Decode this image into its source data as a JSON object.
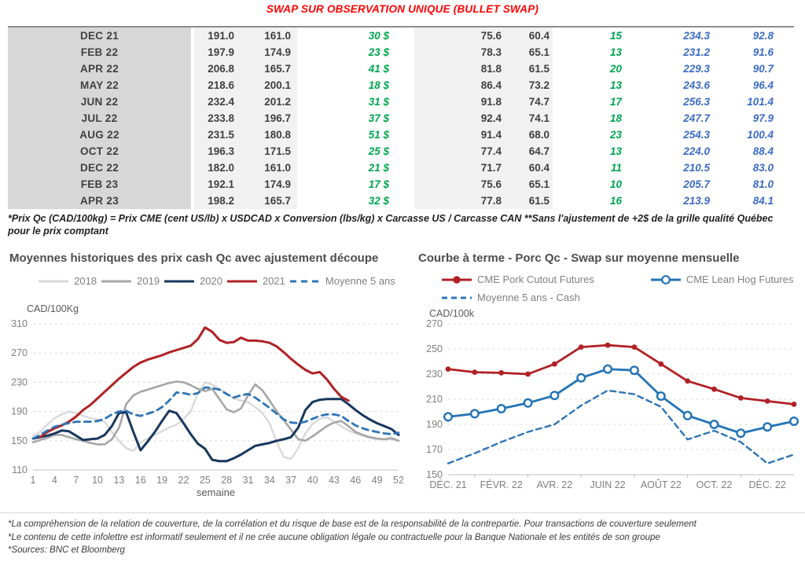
{
  "page": {
    "title": "SWAP SUR OBSERVATION UNIQUE (BULLET SWAP)",
    "title_color": "#ff0000",
    "table_footnote": "*Prix Qc (CAD/100kg) = Prix CME (cent US/lb) x USDCAD x Conversion (lbs/kg) x Carcasse US / Carcasse CAN **Sans l'ajustement de +2$ de la grille qualité Québec pour le prix comptant",
    "footer_notes": [
      "*La compréhension de la relation de couverture, de la corrélation et du risque de base est de la responsabilité de la contrepartie. Pour transactions de couverture seulement",
      "*Le contenu de cette infolettre est informatif seulement et il ne crée aucune obligation légale ou contractuelle pour la Banque Nationale et les entités de son groupe",
      "*Sources: BNC et Bloomberg"
    ]
  },
  "colors": {
    "table_text": "#404040",
    "green": "#00a550",
    "blue": "#3c6bc6",
    "band_dark": "#d7d7d7",
    "band_light": "#f1f1f1"
  },
  "table": {
    "rows": [
      {
        "label": "DEC 21",
        "values": [
          "191.0",
          "161.0",
          "30 $",
          "75.6",
          "60.4",
          "15",
          "234.3",
          "92.8"
        ]
      },
      {
        "label": "FEB 22",
        "values": [
          "197.9",
          "174.9",
          "23 $",
          "78.3",
          "65.1",
          "13",
          "231.2",
          "91.6"
        ]
      },
      {
        "label": "APR 22",
        "values": [
          "206.8",
          "165.7",
          "41 $",
          "81.8",
          "61.5",
          "20",
          "229.3",
          "90.7"
        ]
      },
      {
        "label": "MAY 22",
        "values": [
          "218.6",
          "200.1",
          "18 $",
          "86.4",
          "73.2",
          "13",
          "243.6",
          "96.4"
        ]
      },
      {
        "label": "JUN 22",
        "values": [
          "232.4",
          "201.2",
          "31 $",
          "91.8",
          "74.7",
          "17",
          "256.3",
          "101.4"
        ]
      },
      {
        "label": "JUL 22",
        "values": [
          "233.8",
          "196.7",
          "37 $",
          "92.4",
          "74.1",
          "18",
          "247.7",
          "97.9"
        ]
      },
      {
        "label": "AUG 22",
        "values": [
          "231.5",
          "180.8",
          "51 $",
          "91.4",
          "68.0",
          "23",
          "254.3",
          "100.4"
        ]
      },
      {
        "label": "OCT 22",
        "values": [
          "196.3",
          "171.5",
          "25 $",
          "77.4",
          "64.7",
          "13",
          "224.0",
          "88.4"
        ]
      },
      {
        "label": "DEC 22",
        "values": [
          "182.0",
          "161.0",
          "21 $",
          "71.7",
          "60.4",
          "11",
          "210.5",
          "83.0"
        ]
      },
      {
        "label": "FEB 23",
        "values": [
          "192.1",
          "174.9",
          "17 $",
          "75.6",
          "65.1",
          "10",
          "205.7",
          "81.0"
        ]
      },
      {
        "label": "APR 23",
        "values": [
          "198.2",
          "165.7",
          "32 $",
          "77.8",
          "61.5",
          "16",
          "213.9",
          "84.1"
        ]
      }
    ]
  },
  "chart_data": [
    {
      "type": "line",
      "title": "Moyennes historiques des prix cash Qc avec ajustement découpe",
      "ylabel": "CAD/100Kg",
      "xlabel": "semaine",
      "ylim": [
        110,
        310
      ],
      "yticks": [
        110,
        150,
        190,
        230,
        270,
        310
      ],
      "xticks": [
        {
          "pos": 1,
          "label": "1"
        },
        {
          "pos": 4,
          "label": "4"
        },
        {
          "pos": 7,
          "label": "7"
        },
        {
          "pos": 10,
          "label": "10"
        },
        {
          "pos": 13,
          "label": "13"
        },
        {
          "pos": 16,
          "label": "16"
        },
        {
          "pos": 19,
          "label": "19"
        },
        {
          "pos": 22,
          "label": "22"
        },
        {
          "pos": 25,
          "label": "25"
        },
        {
          "pos": 28,
          "label": "28"
        },
        {
          "pos": 31,
          "label": "31"
        },
        {
          "pos": 34,
          "label": "34"
        },
        {
          "pos": 37,
          "label": "37"
        },
        {
          "pos": 40,
          "label": "40"
        },
        {
          "pos": 43,
          "label": "43"
        },
        {
          "pos": 46,
          "label": "46"
        },
        {
          "pos": 49,
          "label": "49"
        },
        {
          "pos": 52,
          "label": "52"
        }
      ],
      "series": [
        {
          "name": "2018",
          "color": "#d9d9d9",
          "width": 2.4,
          "dash": "",
          "marker": "",
          "values": [
            157,
            162,
            172,
            181,
            186,
            190,
            188,
            184,
            181,
            179,
            176,
            162,
            150,
            140,
            136,
            148,
            153,
            158,
            163,
            168,
            172,
            180,
            190,
            215,
            230,
            227,
            221,
            215,
            208,
            205,
            203,
            196,
            188,
            174,
            148,
            128,
            125,
            140,
            160,
            173,
            180,
            182,
            176,
            170,
            164,
            160,
            157,
            154,
            152,
            152,
            155,
            150
          ]
        },
        {
          "name": "2019",
          "color": "#a6a6a6",
          "width": 2.6,
          "dash": "",
          "marker": "",
          "values": [
            148,
            151,
            154,
            158,
            158,
            155,
            152,
            150,
            147,
            145,
            145,
            152,
            168,
            200,
            212,
            217,
            220,
            223,
            226,
            229,
            231,
            230,
            226,
            221,
            218,
            221,
            207,
            193,
            189,
            194,
            212,
            227,
            219,
            205,
            190,
            178,
            165,
            152,
            150,
            156,
            163,
            170,
            175,
            177,
            170,
            162,
            158,
            155,
            153,
            152,
            153,
            150
          ]
        },
        {
          "name": "2020",
          "color": "#17375e",
          "width": 3,
          "dash": "",
          "marker": "",
          "values": [
            153,
            155,
            157,
            160,
            164,
            163,
            157,
            151,
            152,
            153,
            158,
            170,
            188,
            189,
            162,
            137,
            149,
            162,
            177,
            191,
            188,
            174,
            159,
            146,
            139,
            124,
            122,
            122,
            126,
            131,
            137,
            143,
            145,
            147,
            150,
            152,
            155,
            168,
            192,
            203,
            206,
            207,
            207,
            207,
            200,
            192,
            185,
            179,
            174,
            170,
            166,
            158
          ]
        },
        {
          "name": "2021",
          "color": "#b02126",
          "width": 3,
          "dash": "",
          "marker": "",
          "values": [
            null,
            155,
            162,
            167,
            171,
            176,
            183,
            192,
            199,
            208,
            217,
            226,
            235,
            243,
            251,
            257,
            261,
            264,
            267,
            271,
            274,
            277,
            280,
            289,
            305,
            299,
            288,
            284,
            285,
            291,
            287,
            287,
            286,
            284,
            279,
            271,
            262,
            254,
            247,
            242,
            244,
            234,
            221,
            210,
            205,
            null,
            null,
            null,
            null,
            null,
            null,
            null
          ]
        },
        {
          "name": "Moyenne 5 ans",
          "color": "#2e75b6",
          "width": 2.8,
          "dash": "8 6",
          "marker": "",
          "values": [
            153,
            158,
            164,
            169,
            172,
            174,
            176,
            176,
            176,
            177,
            180,
            186,
            190,
            191,
            186,
            184,
            187,
            190,
            196,
            205,
            216,
            215,
            213,
            215,
            223,
            222,
            220,
            214,
            209,
            212,
            214,
            209,
            202,
            195,
            187,
            179,
            175,
            174,
            176,
            180,
            184,
            186,
            186,
            184,
            177,
            171,
            167,
            164,
            162,
            160,
            159,
            161
          ]
        }
      ]
    },
    {
      "type": "line",
      "title": "Courbe à terme - Porc Qc - Swap sur moyenne mensuelle",
      "ylabel": "CAD/100k",
      "xlabel": "",
      "ylim": [
        150,
        270
      ],
      "yticks": [
        150,
        170,
        190,
        210,
        230,
        250,
        270
      ],
      "xticks": [
        {
          "pos": 0,
          "label": "DÉC. 21"
        },
        {
          "pos": 2,
          "label": "FÉVR. 22"
        },
        {
          "pos": 4,
          "label": "AVR. 22"
        },
        {
          "pos": 6,
          "label": "JUIN 22"
        },
        {
          "pos": 8,
          "label": "AOÛT 22"
        },
        {
          "pos": 10,
          "label": "OCT. 22"
        },
        {
          "pos": 12,
          "label": "DÉC. 22"
        }
      ],
      "series": [
        {
          "name": "CME Pork Cutout Futures",
          "color": "#b02126",
          "width": 2.8,
          "dash": "",
          "marker": "dot",
          "values": [
            234,
            231.5,
            231,
            230,
            238,
            251.5,
            253,
            251.5,
            238,
            224.5,
            218,
            211,
            208.5,
            206
          ]
        },
        {
          "name": "CME Lean Hog Futures",
          "color": "#2273b6",
          "width": 2.8,
          "dash": "",
          "marker": "circle",
          "values": [
            196,
            198.5,
            202.5,
            207,
            213,
            227,
            234,
            233,
            212.5,
            197,
            190,
            183,
            188,
            192.5
          ]
        },
        {
          "name": "Moyenne 5 ans - Cash",
          "color": "#2e75b6",
          "width": 2.4,
          "dash": "7 5",
          "marker": "",
          "values": [
            159,
            167,
            176,
            184,
            190,
            205,
            217,
            214,
            204,
            178,
            185,
            176,
            159,
            166
          ]
        }
      ]
    }
  ]
}
